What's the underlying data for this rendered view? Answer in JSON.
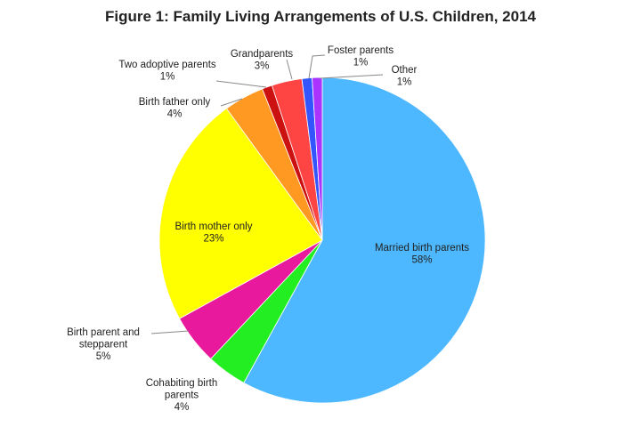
{
  "chart_data": {
    "type": "pie",
    "title": "Figure 1: Family Living Arrangements of U.S. Children, 2014",
    "start_angle_deg": 0,
    "direction": "clockwise",
    "slices": [
      {
        "key": "married",
        "label_lines": [
          "Married birth parents"
        ],
        "pct_text": "58%",
        "value": 58,
        "color": "#4db8ff"
      },
      {
        "key": "cohabiting",
        "label_lines": [
          "Cohabiting birth",
          "parents"
        ],
        "pct_text": "4%",
        "value": 4,
        "color": "#22ee22"
      },
      {
        "key": "stepparent",
        "label_lines": [
          "Birth parent and",
          "stepparent"
        ],
        "pct_text": "5%",
        "value": 5,
        "color": "#e8199d"
      },
      {
        "key": "mother",
        "label_lines": [
          "Birth mother only"
        ],
        "pct_text": "23%",
        "value": 23,
        "color": "#ffff00"
      },
      {
        "key": "father",
        "label_lines": [
          "Birth father only"
        ],
        "pct_text": "4%",
        "value": 4,
        "color": "#ff9922"
      },
      {
        "key": "adoptive",
        "label_lines": [
          "Two adoptive parents"
        ],
        "pct_text": "1%",
        "value": 1,
        "color": "#cc1111"
      },
      {
        "key": "grandparents",
        "label_lines": [
          "Grandparents"
        ],
        "pct_text": "3%",
        "value": 3,
        "color": "#ff4444"
      },
      {
        "key": "foster",
        "label_lines": [
          "Foster parents"
        ],
        "pct_text": "1%",
        "value": 1,
        "color": "#3355ff"
      },
      {
        "key": "other",
        "label_lines": [
          "Other"
        ],
        "pct_text": "1%",
        "value": 1,
        "color": "#aa33ff"
      }
    ]
  }
}
